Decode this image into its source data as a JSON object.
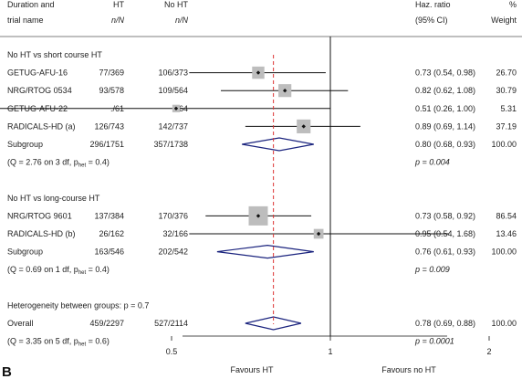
{
  "panel_label": "B",
  "header": {
    "col1_line1": "Duration and",
    "col1_line2": "trial name",
    "ht": "HT",
    "ht_sub": "n/N",
    "noht": "No HT",
    "noht_sub": "n/N",
    "hr_line1": "Haz. ratio",
    "hr_line2": "(95% CI)",
    "w_line1": "%",
    "w_line2": "Weight"
  },
  "x_axis": {
    "ticks": [
      "0.5",
      "1",
      "2"
    ],
    "left_label": "Favours HT",
    "right_label": "Favours no HT"
  },
  "rows": [
    {
      "kind": "section",
      "label": "No HT vs short course HT"
    },
    {
      "kind": "study",
      "name": "GETUG-AFU-16",
      "ht": "77/369",
      "noht": "106/373",
      "hr_text": "0.73 (0.54, 0.98)",
      "weight": "26.70",
      "hr": 0.73,
      "lo": 0.54,
      "hi": 0.98,
      "w": 26.7
    },
    {
      "kind": "study",
      "name": "NRG/RTOG 0534",
      "ht": "93/578",
      "noht": "109/564",
      "hr_text": "0.82 (0.62, 1.08)",
      "weight": "30.79",
      "hr": 0.82,
      "lo": 0.62,
      "hi": 1.08,
      "w": 30.79
    },
    {
      "kind": "study",
      "name": "GETUG-AFU-22",
      "ht": "./61",
      "noht": "./64",
      "hr_text": "0.51 (0.26, 1.00)",
      "weight": "5.31",
      "hr": 0.51,
      "lo": 0.26,
      "hi": 1.0,
      "w": 5.31,
      "arrow_left": true
    },
    {
      "kind": "study",
      "name": "RADICALS-HD (a)",
      "ht": "126/743",
      "noht": "142/737",
      "hr_text": "0.89 (0.69, 1.14)",
      "weight": "37.19",
      "hr": 0.89,
      "lo": 0.69,
      "hi": 1.14,
      "w": 37.19
    },
    {
      "kind": "subgroup",
      "name": "Subgroup",
      "ht": "296/1751",
      "noht": "357/1738",
      "hr_text": "0.80 (0.68, 0.93)",
      "weight": "100.00",
      "hr": 0.8,
      "lo": 0.68,
      "hi": 0.93
    },
    {
      "kind": "het",
      "label": "(Q = 2.76 on 3 df, p",
      "sub": "het",
      "tail": " = 0.4)",
      "pval": "p = 0.004"
    },
    {
      "kind": "blank"
    },
    {
      "kind": "section",
      "label": "No HT vs long-course HT"
    },
    {
      "kind": "study",
      "name": "NRG/RTOG 9601",
      "ht": "137/384",
      "noht": "170/376",
      "hr_text": "0.73 (0.58, 0.92)",
      "weight": "86.54",
      "hr": 0.73,
      "lo": 0.58,
      "hi": 0.92,
      "w": 86.54
    },
    {
      "kind": "study",
      "name": "RADICALS-HD (b)",
      "ht": "26/162",
      "noht": "32/166",
      "hr_text": "0.95 (0.54, 1.68)",
      "weight": "13.46",
      "hr": 0.95,
      "lo": 0.54,
      "hi": 1.68,
      "w": 13.46
    },
    {
      "kind": "subgroup",
      "name": "Subgroup",
      "ht": "163/546",
      "noht": "202/542",
      "hr_text": "0.76 (0.61, 0.93)",
      "weight": "100.00",
      "hr": 0.76,
      "lo": 0.61,
      "hi": 0.93
    },
    {
      "kind": "het",
      "label": "(Q = 0.69 on 1 df, p",
      "sub": "het",
      "tail": " = 0.4)",
      "pval": "p = 0.009"
    },
    {
      "kind": "blank"
    },
    {
      "kind": "section",
      "label": "Heterogeneity between groups: p = 0.7"
    },
    {
      "kind": "subgroup",
      "name": "Overall",
      "ht": "459/2297",
      "noht": "527/2114",
      "hr_text": "0.78 (0.69, 0.88)",
      "weight": "100.00",
      "hr": 0.78,
      "lo": 0.69,
      "hi": 0.88
    },
    {
      "kind": "het",
      "label": "(Q = 3.35 on 5 df, p",
      "sub": "het",
      "tail": " = 0.6)",
      "pval": "p = 0.0001"
    }
  ],
  "chart_data": {
    "type": "forest",
    "scale": "log",
    "x_ticks": [
      0.5,
      1,
      2
    ],
    "null_line": 1,
    "overall_effect": 0.78,
    "xlabel_left": "Favours HT",
    "xlabel_right": "Favours no HT",
    "studies": [
      {
        "name": "GETUG-AFU-16",
        "hr": 0.73,
        "lo": 0.54,
        "hi": 0.98,
        "weight": 26.7
      },
      {
        "name": "NRG/RTOG 0534",
        "hr": 0.82,
        "lo": 0.62,
        "hi": 1.08,
        "weight": 30.79
      },
      {
        "name": "GETUG-AFU-22",
        "hr": 0.51,
        "lo": 0.26,
        "hi": 1.0,
        "weight": 5.31
      },
      {
        "name": "RADICALS-HD (a)",
        "hr": 0.89,
        "lo": 0.69,
        "hi": 1.14,
        "weight": 37.19
      },
      {
        "name": "NRG/RTOG 9601",
        "hr": 0.73,
        "lo": 0.58,
        "hi": 0.92,
        "weight": 86.54
      },
      {
        "name": "RADICALS-HD (b)",
        "hr": 0.95,
        "lo": 0.54,
        "hi": 1.68,
        "weight": 13.46
      }
    ],
    "subgroups": [
      {
        "name": "No HT vs short course HT",
        "hr": 0.8,
        "lo": 0.68,
        "hi": 0.93
      },
      {
        "name": "No HT vs long-course HT",
        "hr": 0.76,
        "lo": 0.61,
        "hi": 0.93
      },
      {
        "name": "Overall",
        "hr": 0.78,
        "lo": 0.69,
        "hi": 0.88
      }
    ]
  }
}
